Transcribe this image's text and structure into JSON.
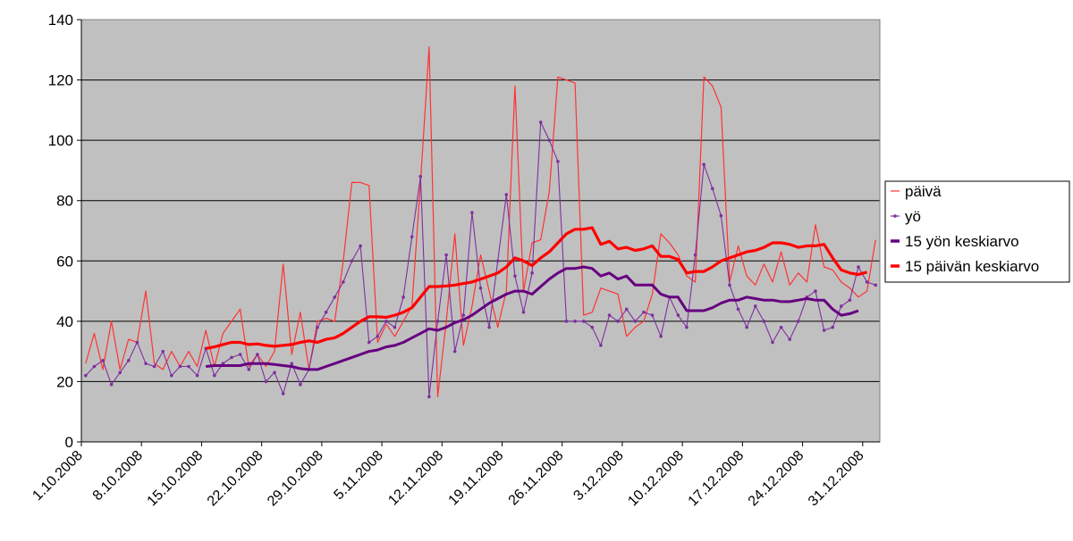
{
  "chart_data": {
    "type": "line",
    "title": "",
    "xlabel": "",
    "ylabel": "",
    "ylim": [
      0,
      140
    ],
    "yticks": [
      "0",
      "20",
      "40",
      "60",
      "80",
      "100",
      "120",
      "140"
    ],
    "x_tick_labels": [
      "1.10.2008",
      "8.10.2008",
      "15.10.2008",
      "22.10.2008",
      "29.10.2008",
      "5.11.2008",
      "12.11.2008",
      "19.11.2008",
      "26.11.2008",
      "3.12.2008",
      "10.12.2008",
      "17.12.2008",
      "24.12.2008",
      "31.12.2008"
    ],
    "plot_background": "#c0c0c0",
    "grid": true,
    "legend_position": "right",
    "series": [
      {
        "name": "päivä",
        "color": "#ff3333",
        "marker": "none",
        "values": [
          26,
          36,
          24,
          40,
          24,
          34,
          33,
          50,
          26,
          24,
          30,
          25,
          30,
          25,
          37,
          25,
          36,
          40,
          44,
          25,
          29,
          25,
          30,
          59,
          29,
          43,
          24,
          40,
          41,
          40,
          60,
          86,
          86,
          85,
          33,
          39,
          35,
          40,
          45,
          86,
          131,
          15,
          40,
          69,
          32,
          45,
          62,
          50,
          38,
          50,
          118,
          50,
          66,
          67,
          83,
          121,
          120,
          119,
          42,
          43,
          51,
          50,
          49,
          35,
          38,
          40,
          49,
          69,
          66,
          62,
          55,
          53,
          121,
          118,
          111,
          53,
          65,
          55,
          52,
          59,
          53,
          63,
          52,
          56,
          53,
          72,
          58,
          57,
          53,
          51,
          48,
          50,
          67
        ]
      },
      {
        "name": "yö",
        "color": "#7f2f9f",
        "marker": "dot",
        "values": [
          22,
          25,
          27,
          19,
          23,
          27,
          33,
          26,
          25,
          30,
          22,
          25,
          25,
          22,
          31,
          22,
          26,
          28,
          29,
          24,
          29,
          20,
          23,
          16,
          26,
          19,
          24,
          38,
          43,
          48,
          53,
          60,
          65,
          33,
          35,
          40,
          38,
          48,
          68,
          88,
          15,
          40,
          62,
          30,
          42,
          76,
          51,
          38,
          60,
          82,
          55,
          43,
          56,
          106,
          100,
          93,
          40,
          40,
          40,
          38,
          32,
          42,
          40,
          44,
          40,
          43,
          42,
          35,
          48,
          42,
          38,
          62,
          92,
          84,
          75,
          52,
          44,
          38,
          45,
          40,
          33,
          38,
          34,
          40,
          48,
          50,
          37,
          38,
          45,
          47,
          58,
          53,
          52
        ]
      },
      {
        "name": "15 yön keskiarvo",
        "color": "#660080",
        "marker": "none",
        "start_index": 14,
        "values": [
          25,
          25.3,
          25.3,
          25.3,
          25.3,
          26,
          26,
          26,
          25.7,
          25.3,
          25,
          24.3,
          24,
          24,
          25,
          26,
          27,
          28,
          29,
          30,
          30.5,
          31.5,
          32,
          33,
          34.5,
          36,
          37.5,
          37,
          38,
          39.5,
          40.5,
          42,
          44,
          46,
          47.5,
          49,
          50,
          50,
          49,
          51.5,
          54,
          56,
          57.5,
          57.5,
          58,
          57.5,
          55,
          56,
          54,
          55,
          52,
          52,
          52,
          49,
          48,
          48,
          43.5,
          43.5,
          43.5,
          44.5,
          46,
          47,
          47,
          48,
          47.5,
          47,
          47,
          46.5,
          46.5,
          47,
          47.5,
          47,
          47,
          44,
          42,
          42.5,
          43.5
        ]
      },
      {
        "name": "15 päivän keskiarvo",
        "color": "#ff0000",
        "marker": "none",
        "start_index": 14,
        "values": [
          31,
          31.5,
          32.3,
          33,
          33,
          32.3,
          32.5,
          32,
          31.7,
          32,
          32.3,
          33,
          33.5,
          33,
          34,
          34.5,
          36,
          38,
          40,
          41.5,
          41.5,
          41.3,
          42,
          43,
          44.5,
          48,
          51.5,
          51.5,
          51.7,
          52,
          52.5,
          53,
          54,
          55,
          56,
          58,
          61,
          60,
          58.5,
          61,
          63,
          66,
          69,
          70.5,
          70.5,
          71,
          65.5,
          66.5,
          64,
          64.5,
          63.5,
          64,
          65,
          61.5,
          61.5,
          60.5,
          56,
          56.5,
          56.5,
          58,
          60,
          61,
          62,
          63,
          63.5,
          64.5,
          66,
          66,
          65.5,
          64.5,
          65,
          65,
          65.5,
          61,
          57,
          56,
          55.5,
          56.3
        ]
      }
    ]
  }
}
